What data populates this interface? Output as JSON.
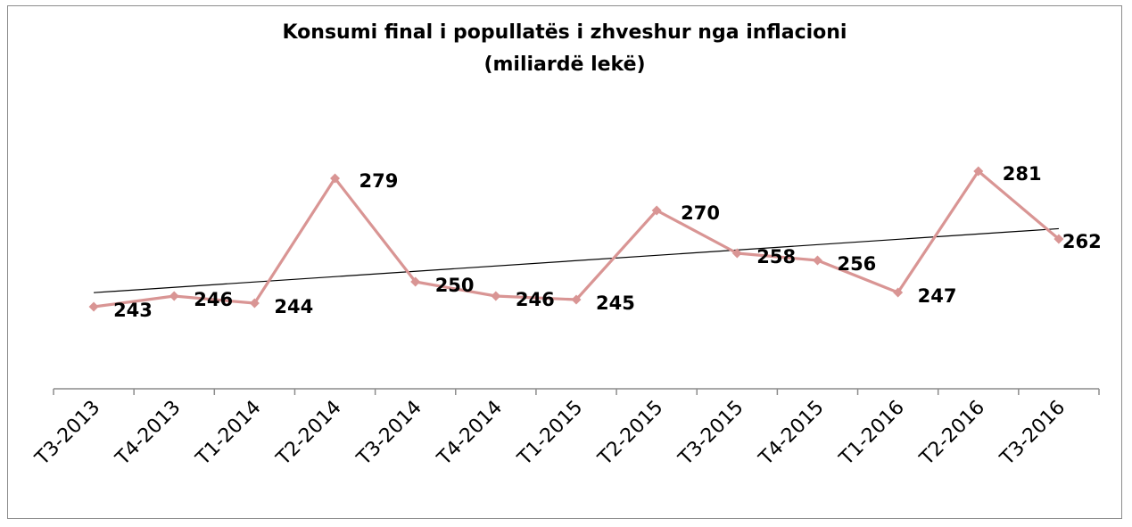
{
  "colors": {
    "series": "#d99594",
    "trend": "#000000",
    "axis": "#8c8c8c"
  },
  "chart_data": {
    "type": "line",
    "title_line1": "Konsumi final i popullatës i zhveshur nga inflacioni",
    "title_line2": "(miliardë lekë)",
    "categories": [
      "T3-2013",
      "T4-2013",
      "T1-2014",
      "T2-2014",
      "T3-2014",
      "T4-2014",
      "T1-2015",
      "T2-2015",
      "T3-2015",
      "T4-2015",
      "T1-2016",
      "T2-2016",
      "T3-2016"
    ],
    "values": [
      243,
      246,
      244,
      279,
      250,
      246,
      245,
      270,
      258,
      256,
      247,
      281,
      262
    ],
    "trendline": "linear",
    "legend": "none",
    "grid": false
  }
}
